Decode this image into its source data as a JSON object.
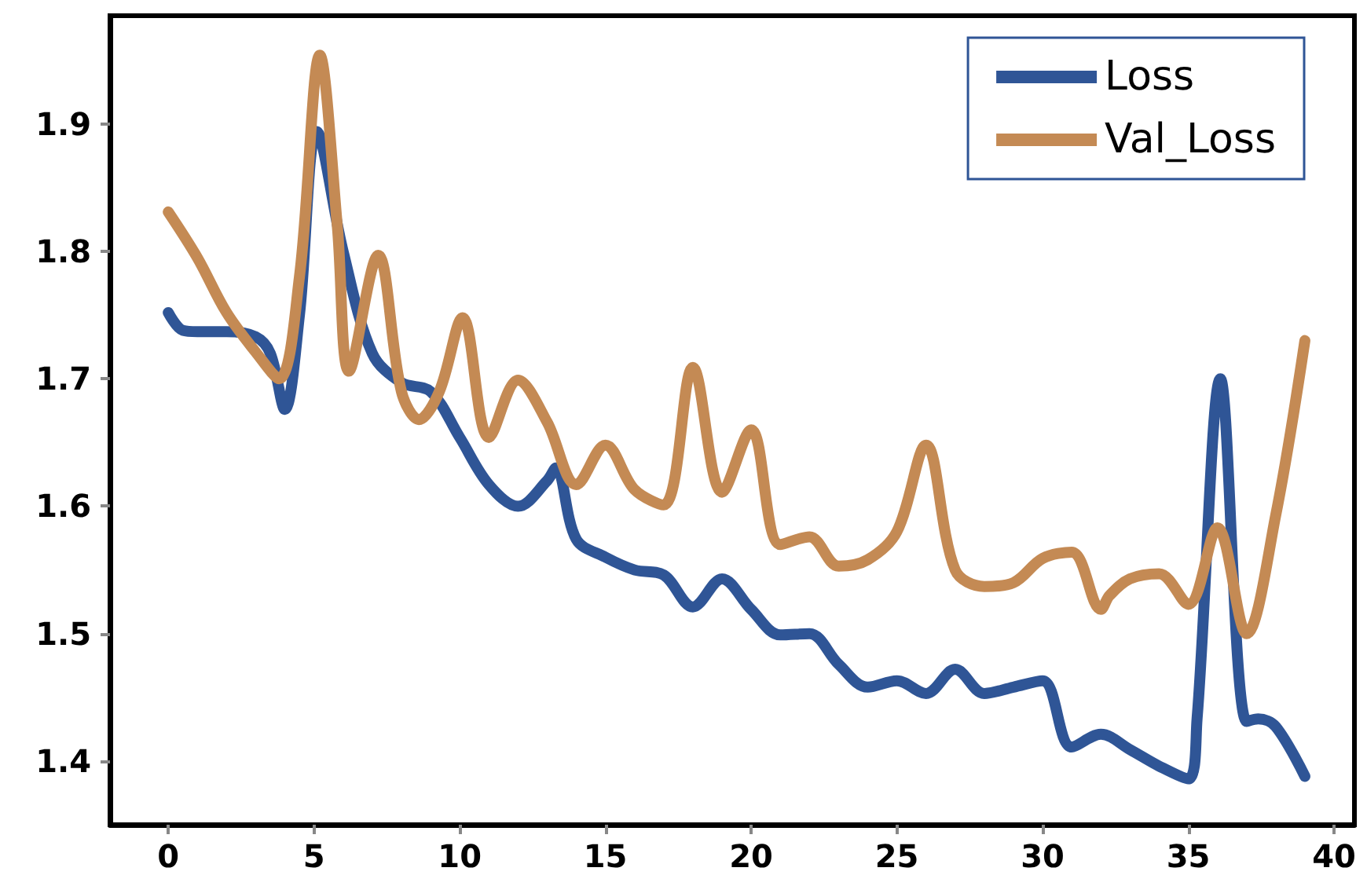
{
  "chart_data": {
    "type": "line",
    "xlim": [
      -2,
      40.7
    ],
    "ylim": [
      1.35,
      1.985
    ],
    "xticks": [
      0,
      5,
      10,
      15,
      20,
      25,
      30,
      35,
      40
    ],
    "yticks": [
      1.4,
      1.5,
      1.6,
      1.7,
      1.8,
      1.9
    ],
    "legend": "top right",
    "marker": "none",
    "line_style": "solid",
    "series": [
      {
        "name": "Loss",
        "color": "#2f5596",
        "x": [
          0,
          0.5,
          1,
          2,
          3,
          3.5,
          4,
          4.5,
          5.1,
          6,
          7,
          8,
          9,
          10,
          11,
          12,
          13,
          13.3,
          14,
          15,
          16,
          17,
          18,
          19,
          20,
          21,
          22,
          23,
          24,
          25,
          26,
          27,
          28,
          29,
          30,
          31,
          32,
          33,
          34,
          35,
          35.3,
          36.1,
          37,
          37.4,
          38,
          39
        ],
        "values": [
          1.752,
          1.738,
          1.737,
          1.737,
          1.733,
          1.72,
          1.676,
          1.75,
          1.894,
          1.8,
          1.72,
          1.697,
          1.69,
          1.654,
          1.617,
          1.6,
          1.62,
          1.63,
          1.574,
          1.56,
          1.55,
          1.546,
          1.521,
          1.543,
          1.519,
          1.499,
          1.5,
          1.476,
          1.458,
          1.463,
          1.453,
          1.472,
          1.453,
          1.458,
          1.463,
          1.411,
          1.421,
          1.409,
          1.396,
          1.386,
          1.433,
          1.7,
          1.431,
          1.433,
          1.427,
          1.388
        ]
      },
      {
        "name": "Val_Loss",
        "color": "#c48a54",
        "x": [
          0,
          1,
          2,
          3,
          3.8,
          4.5,
          5.2,
          5.8,
          6.2,
          7.2,
          8,
          8.6,
          9.3,
          10.1,
          11,
          12,
          13,
          14,
          15,
          16,
          17,
          18,
          19,
          20,
          21,
          22,
          23,
          24,
          25,
          26,
          27,
          28,
          29,
          30,
          31,
          32,
          32.3,
          33,
          34,
          35,
          36,
          37,
          38,
          39
        ],
        "values": [
          1.831,
          1.795,
          1.752,
          1.721,
          1.7,
          1.78,
          1.954,
          1.82,
          1.706,
          1.797,
          1.69,
          1.668,
          1.69,
          1.748,
          1.654,
          1.699,
          1.666,
          1.617,
          1.648,
          1.613,
          1.601,
          1.709,
          1.611,
          1.66,
          1.57,
          1.576,
          1.553,
          1.558,
          1.58,
          1.648,
          1.55,
          1.537,
          1.54,
          1.559,
          1.564,
          1.519,
          1.53,
          1.543,
          1.547,
          1.523,
          1.583,
          1.5,
          1.593,
          1.73
        ]
      }
    ]
  }
}
